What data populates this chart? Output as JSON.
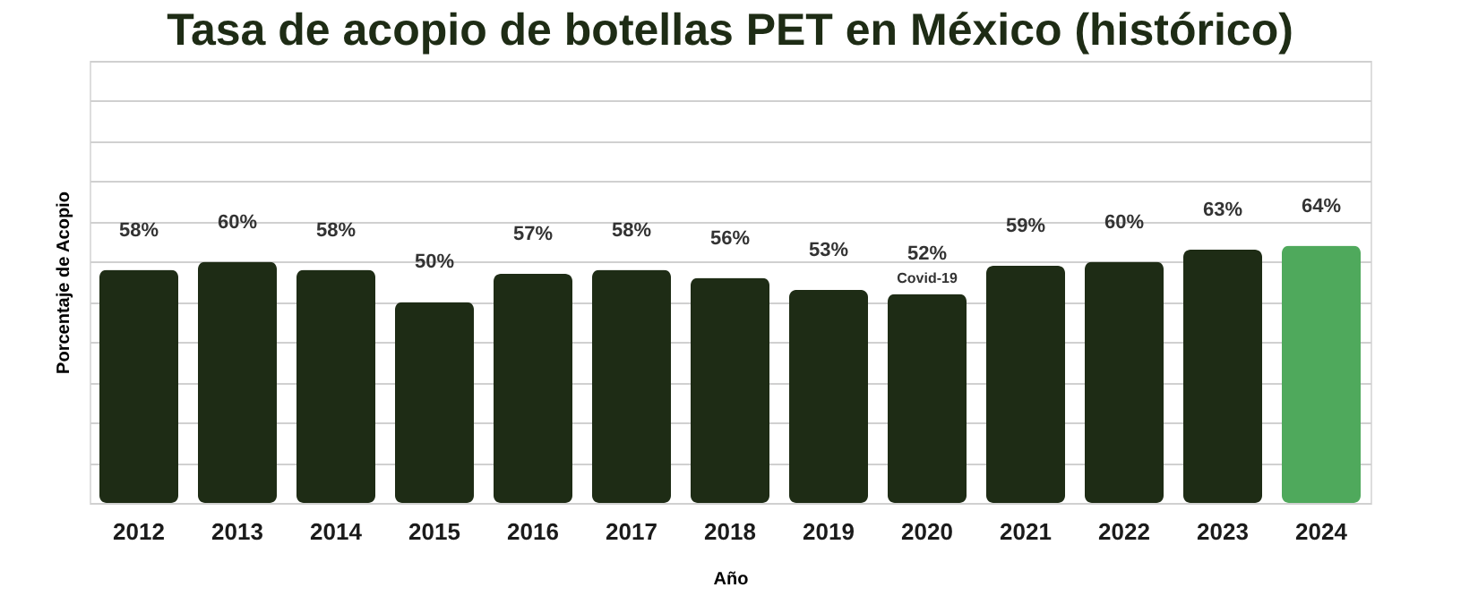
{
  "chart_data": {
    "type": "bar",
    "title": "Tasa de acopio de botellas PET en México (histórico)",
    "xlabel": "Año",
    "ylabel": "Porcentaje de Acopio",
    "categories": [
      "2012",
      "2013",
      "2014",
      "2015",
      "2016",
      "2017",
      "2018",
      "2019",
      "2020",
      "2021",
      "2022",
      "2023",
      "2024"
    ],
    "values": [
      58,
      60,
      58,
      50,
      57,
      58,
      56,
      53,
      52,
      59,
      60,
      63,
      64
    ],
    "value_labels": [
      "58%",
      "60%",
      "58%",
      "50%",
      "57%",
      "58%",
      "56%",
      "53%",
      "52%",
      "59%",
      "60%",
      "63%",
      "64%"
    ],
    "colors": [
      "#1e2c15",
      "#1e2c15",
      "#1e2c15",
      "#1e2c15",
      "#1e2c15",
      "#1e2c15",
      "#1e2c15",
      "#1e2c15",
      "#1e2c15",
      "#1e2c15",
      "#1e2c15",
      "#1e2c15",
      "#4fa95c"
    ],
    "annotations": [
      {
        "text": "Covid-19",
        "x": "2020",
        "y": 52
      }
    ],
    "ylim": [
      0,
      110
    ],
    "tick_labels": "x",
    "grid": "y"
  }
}
